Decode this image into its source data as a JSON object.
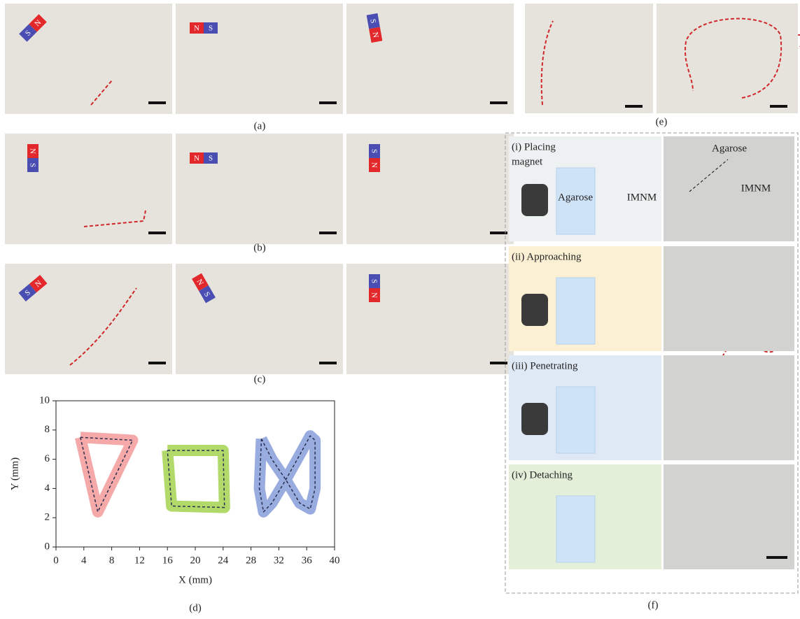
{
  "panel_a": {
    "caption": "(a)",
    "magnets": [
      [
        "S",
        "N"
      ],
      [
        "N",
        "S"
      ],
      [
        "S",
        "N"
      ]
    ]
  },
  "panel_b": {
    "caption": "(b)",
    "magnets": [
      [
        "N",
        "S"
      ],
      [
        "N",
        "S"
      ],
      [
        "S",
        "N"
      ]
    ]
  },
  "panel_c": {
    "caption": "(c)",
    "magnets": [
      [
        "S",
        "N"
      ],
      [
        "N",
        "S"
      ],
      [
        "S",
        "N"
      ]
    ]
  },
  "chart_data": {
    "type": "line",
    "caption": "(d)",
    "x_label": "X (mm)",
    "y_label": "Y (mm)",
    "xlim": [
      0,
      40
    ],
    "xticks": [
      0,
      4,
      8,
      12,
      16,
      20,
      24,
      28,
      32,
      36,
      40
    ],
    "ylim": [
      0,
      10
    ],
    "yticks": [
      0,
      2,
      4,
      6,
      8,
      10
    ],
    "line_color": "#2b3050",
    "series": [
      {
        "color": "#f4a0a0",
        "x": [
          3.5,
          11,
          6,
          3.5
        ],
        "y": [
          7.5,
          7.3,
          2.4,
          7.5
        ]
      },
      {
        "color": "#a9d65a",
        "x": [
          16,
          24,
          24.2,
          16.6,
          16
        ],
        "y": [
          6.6,
          6.6,
          2.7,
          2.8,
          6.6
        ]
      },
      {
        "color": "#8ea3dc",
        "x": [
          29.5,
          31,
          33,
          35,
          36.5,
          37.2,
          37.2,
          36.5,
          35,
          33,
          31,
          29.8,
          29.2,
          29.5
        ],
        "y": [
          7.4,
          6,
          4.6,
          3,
          2.6,
          4,
          7.3,
          7.6,
          6.3,
          4.6,
          3,
          2.4,
          4,
          7.4
        ]
      }
    ]
  },
  "panel_e": {
    "caption": "(e)"
  },
  "panel_f": {
    "caption": "(f)",
    "stages": [
      {
        "title": [
          "(i) Placing",
          "magnet"
        ],
        "labels": [
          "Agarose",
          "IMNM"
        ],
        "photo_labels": [
          "Agarose",
          "IMNM"
        ]
      },
      {
        "title": [
          "(ii) Approaching"
        ]
      },
      {
        "title": [
          "(iii) Penetrating"
        ]
      },
      {
        "title": [
          "(iv) Detaching"
        ]
      }
    ]
  }
}
